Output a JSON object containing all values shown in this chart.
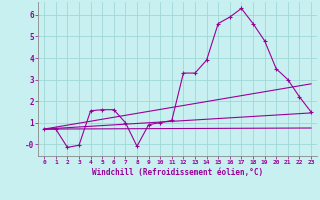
{
  "bg_color": "#c8f0f0",
  "grid_color": "#a0d8d8",
  "line_color": "#990099",
  "xlabel": "Windchill (Refroidissement éolien,°C)",
  "xlim": [
    -0.5,
    23.5
  ],
  "ylim": [
    -0.55,
    6.6
  ],
  "yticks": [
    0,
    1,
    2,
    3,
    4,
    5,
    6
  ],
  "ytick_labels": [
    "-0",
    "1",
    "2",
    "3",
    "4",
    "5",
    "6"
  ],
  "xticks": [
    0,
    1,
    2,
    3,
    4,
    5,
    6,
    7,
    8,
    9,
    10,
    11,
    12,
    13,
    14,
    15,
    16,
    17,
    18,
    19,
    20,
    21,
    22,
    23
  ],
  "series": [
    {
      "x": [
        0,
        1,
        2,
        3,
        4,
        5,
        6,
        7,
        8,
        9,
        10,
        11,
        12,
        13,
        14,
        15,
        16,
        17,
        18,
        19,
        20,
        21,
        22,
        23
      ],
      "y": [
        0.7,
        0.7,
        -0.15,
        -0.05,
        1.55,
        1.6,
        1.6,
        1.0,
        -0.1,
        0.9,
        1.0,
        1.1,
        3.3,
        3.3,
        3.9,
        5.6,
        5.9,
        6.3,
        5.6,
        4.8,
        3.5,
        3.0,
        2.2,
        1.5
      ],
      "marker": "+"
    },
    {
      "x": [
        0,
        23
      ],
      "y": [
        0.7,
        1.45
      ],
      "marker": null
    },
    {
      "x": [
        0,
        23
      ],
      "y": [
        0.7,
        2.8
      ],
      "marker": null
    },
    {
      "x": [
        0,
        23
      ],
      "y": [
        0.7,
        0.75
      ],
      "marker": null
    }
  ],
  "figsize": [
    3.2,
    2.0
  ],
  "dpi": 100
}
